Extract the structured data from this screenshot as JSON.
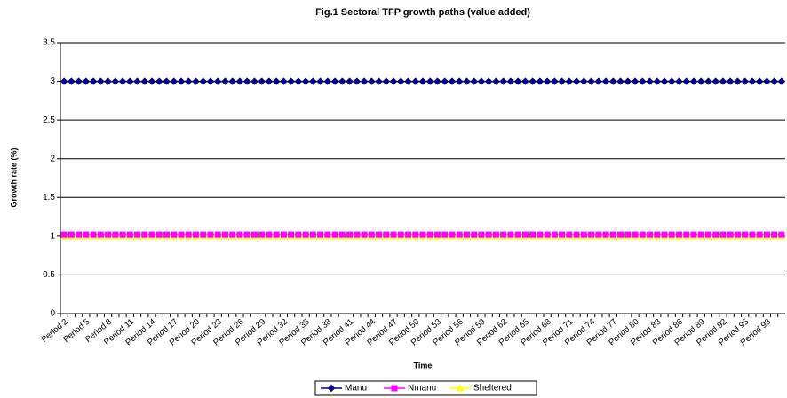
{
  "chart_data": {
    "type": "line",
    "title": "Fig.1 Sectoral TFP growth paths (value added)",
    "x_label": "Time",
    "y_label": "Growth rate (%)",
    "categories": [
      "Period 2",
      null,
      null,
      "Period 5",
      null,
      null,
      "Period 8",
      null,
      null,
      "Period 11",
      null,
      null,
      "Period 14",
      null,
      null,
      "Period 17",
      null,
      null,
      "Period 20",
      null,
      null,
      "Period 23",
      null,
      null,
      "Period 26",
      null,
      null,
      "Period 29",
      null,
      null,
      "Period 32",
      null,
      null,
      "Period 35",
      null,
      null,
      "Period 38",
      null,
      null,
      "Period 41",
      null,
      null,
      "Period 44",
      null,
      null,
      "Period 47",
      null,
      null,
      "Period 50",
      null,
      null,
      "Period 53",
      null,
      null,
      "Period 56",
      null,
      null,
      "Period 59",
      null,
      null,
      "Period 62",
      null,
      null,
      "Period 65",
      null,
      null,
      "Period 68",
      null,
      null,
      "Period 71",
      null,
      null,
      "Period 74",
      null,
      null,
      "Period 77",
      null,
      null,
      "Period 80",
      null,
      null,
      "Period 83",
      null,
      null,
      "Period 86",
      null,
      null,
      "Period 89",
      null,
      null,
      "Period 92",
      null,
      null,
      "Period 95",
      null,
      null,
      "Period 98",
      null,
      null
    ],
    "series": [
      {
        "name": "Manu",
        "color": "#000080",
        "marker": "diamond",
        "values": [
          3,
          3,
          3,
          3,
          3,
          3,
          3,
          3,
          3,
          3,
          3,
          3,
          3,
          3,
          3,
          3,
          3,
          3,
          3,
          3,
          3,
          3,
          3,
          3,
          3,
          3,
          3,
          3,
          3,
          3,
          3,
          3,
          3,
          3,
          3,
          3,
          3,
          3,
          3,
          3,
          3,
          3,
          3,
          3,
          3,
          3,
          3,
          3,
          3,
          3,
          3,
          3,
          3,
          3,
          3,
          3,
          3,
          3,
          3,
          3,
          3,
          3,
          3,
          3,
          3,
          3,
          3,
          3,
          3,
          3,
          3,
          3,
          3,
          3,
          3,
          3,
          3,
          3,
          3,
          3,
          3,
          3,
          3,
          3,
          3,
          3,
          3,
          3,
          3,
          3,
          3,
          3,
          3,
          3,
          3,
          3,
          3,
          3,
          3
        ]
      },
      {
        "name": "Nmanu",
        "color": "#FF00FF",
        "marker": "square",
        "values": [
          1.02,
          1.02,
          1.02,
          1.02,
          1.02,
          1.02,
          1.02,
          1.02,
          1.02,
          1.02,
          1.02,
          1.02,
          1.02,
          1.02,
          1.02,
          1.02,
          1.02,
          1.02,
          1.02,
          1.02,
          1.02,
          1.02,
          1.02,
          1.02,
          1.02,
          1.02,
          1.02,
          1.02,
          1.02,
          1.02,
          1.02,
          1.02,
          1.02,
          1.02,
          1.02,
          1.02,
          1.02,
          1.02,
          1.02,
          1.02,
          1.02,
          1.02,
          1.02,
          1.02,
          1.02,
          1.02,
          1.02,
          1.02,
          1.02,
          1.02,
          1.02,
          1.02,
          1.02,
          1.02,
          1.02,
          1.02,
          1.02,
          1.02,
          1.02,
          1.02,
          1.02,
          1.02,
          1.02,
          1.02,
          1.02,
          1.02,
          1.02,
          1.02,
          1.02,
          1.02,
          1.02,
          1.02,
          1.02,
          1.02,
          1.02,
          1.02,
          1.02,
          1.02,
          1.02,
          1.02,
          1.02,
          1.02,
          1.02,
          1.02,
          1.02,
          1.02,
          1.02,
          1.02,
          1.02,
          1.02,
          1.02,
          1.02,
          1.02,
          1.02,
          1.02,
          1.02,
          1.02,
          1.02,
          1.02
        ]
      },
      {
        "name": "Sheltered",
        "color": "#FFFF00",
        "marker": "triangle",
        "values": [
          1,
          1,
          1,
          1,
          1,
          1,
          1,
          1,
          1,
          1,
          1,
          1,
          1,
          1,
          1,
          1,
          1,
          1,
          1,
          1,
          1,
          1,
          1,
          1,
          1,
          1,
          1,
          1,
          1,
          1,
          1,
          1,
          1,
          1,
          1,
          1,
          1,
          1,
          1,
          1,
          1,
          1,
          1,
          1,
          1,
          1,
          1,
          1,
          1,
          1,
          1,
          1,
          1,
          1,
          1,
          1,
          1,
          1,
          1,
          1,
          1,
          1,
          1,
          1,
          1,
          1,
          1,
          1,
          1,
          1,
          1,
          1,
          1,
          1,
          1,
          1,
          1,
          1,
          1,
          1,
          1,
          1,
          1,
          1,
          1,
          1,
          1,
          1,
          1,
          1,
          1,
          1,
          1,
          1,
          1,
          1,
          1,
          1,
          1
        ]
      }
    ],
    "ylim": [
      0,
      3.5
    ],
    "yticks": [
      0,
      0.5,
      1,
      1.5,
      2,
      2.5,
      3,
      3.5
    ],
    "grid": true,
    "legend": "bottom"
  }
}
